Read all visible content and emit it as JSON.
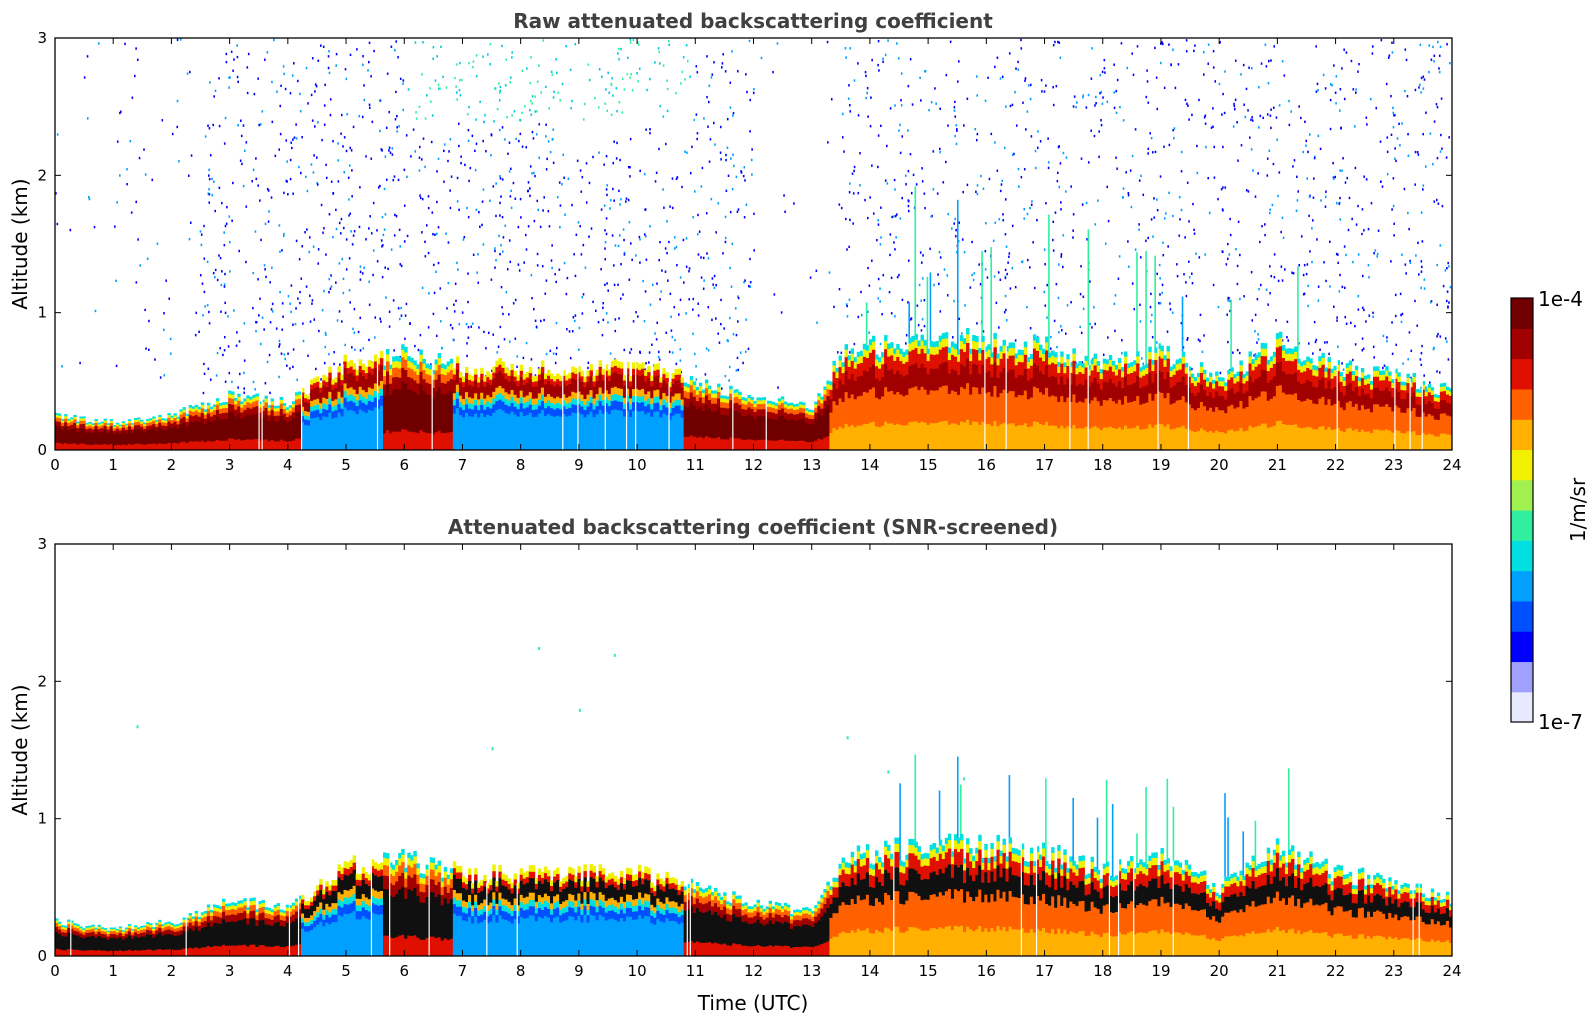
{
  "chart_data": [
    {
      "type": "heatmap",
      "title": "Raw attenuated backscattering coefficient",
      "xlabel": "",
      "ylabel": "Altitude (km)",
      "xlim": [
        0,
        24
      ],
      "ylim": [
        0,
        3
      ],
      "xticks": [
        "0",
        "1",
        "2",
        "3",
        "4",
        "5",
        "6",
        "7",
        "8",
        "9",
        "10",
        "11",
        "12",
        "13",
        "14",
        "15",
        "16",
        "17",
        "18",
        "19",
        "20",
        "21",
        "22",
        "23",
        "24"
      ],
      "yticks": [
        "0",
        "1",
        "2",
        "3"
      ],
      "screened": false,
      "layer_top_km": {
        "hours": [
          0,
          1,
          2,
          3,
          4,
          5,
          6,
          7,
          8,
          9,
          10,
          11,
          12,
          13,
          13.5,
          14,
          15,
          16,
          17,
          18,
          19,
          20,
          21,
          22,
          23,
          24
        ],
        "values": [
          0.25,
          0.2,
          0.25,
          0.4,
          0.35,
          0.65,
          0.7,
          0.6,
          0.6,
          0.6,
          0.6,
          0.5,
          0.38,
          0.32,
          0.7,
          0.75,
          0.8,
          0.8,
          0.75,
          0.62,
          0.72,
          0.5,
          0.78,
          0.6,
          0.55,
          0.42
        ]
      }
    },
    {
      "type": "heatmap",
      "title": "Attenuated backscattering coefficient (SNR-screened)",
      "xlabel": "Time (UTC)",
      "ylabel": "Altitude (km)",
      "xlim": [
        0,
        24
      ],
      "ylim": [
        0,
        3
      ],
      "xticks": [
        "0",
        "1",
        "2",
        "3",
        "4",
        "5",
        "6",
        "7",
        "8",
        "9",
        "10",
        "11",
        "12",
        "13",
        "14",
        "15",
        "16",
        "17",
        "18",
        "19",
        "20",
        "21",
        "22",
        "23",
        "24"
      ],
      "yticks": [
        "0",
        "1",
        "2",
        "3"
      ],
      "screened": true,
      "layer_top_km": {
        "hours": [
          0,
          1,
          2,
          3,
          4,
          5,
          6,
          7,
          8,
          9,
          10,
          11,
          12,
          13,
          13.5,
          14,
          15,
          16,
          17,
          18,
          19,
          20,
          21,
          22,
          23,
          24
        ],
        "values": [
          0.25,
          0.2,
          0.25,
          0.4,
          0.35,
          0.65,
          0.7,
          0.6,
          0.6,
          0.6,
          0.6,
          0.5,
          0.38,
          0.32,
          0.7,
          0.75,
          0.8,
          0.8,
          0.75,
          0.62,
          0.72,
          0.5,
          0.78,
          0.6,
          0.55,
          0.42
        ]
      }
    }
  ],
  "colorbar": {
    "label": "1/m/sr",
    "min_label": "1e-7",
    "max_label": "1e-4",
    "scale": "log",
    "colors": [
      "#e8e8ff",
      "#a0a0ff",
      "#0000ff",
      "#0050ff",
      "#00a0ff",
      "#00e0e0",
      "#30f0a0",
      "#a0f050",
      "#f0f000",
      "#ffb000",
      "#ff6000",
      "#e01000",
      "#a00000",
      "#700000"
    ]
  },
  "text_color": "#404040"
}
